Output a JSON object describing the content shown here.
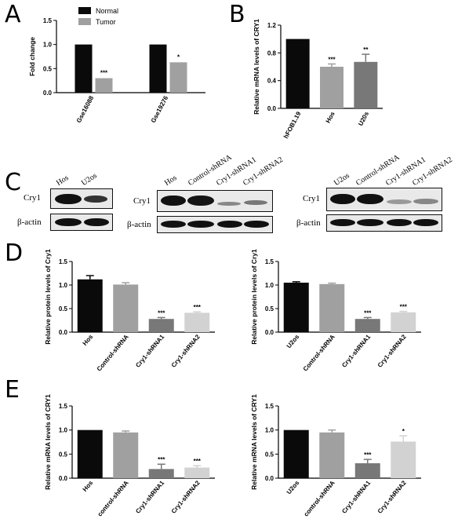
{
  "panels": {
    "A": "A",
    "B": "B",
    "C": "C",
    "D": "D",
    "E": "E"
  },
  "colors": {
    "black": "#0a0a0a",
    "grey": "#9a9a9a",
    "darkgrey": "#707070",
    "lightgrey": "#d0d0d0"
  },
  "blots": {
    "blot1": {
      "lanes": [
        "Hos",
        "U2os"
      ],
      "row_labels": [
        "Cry1",
        "β-actin"
      ]
    },
    "blot2": {
      "lanes": [
        "Hos",
        "Control-shRNA",
        "Cry1-shRNA1",
        "Cry1-shRNA2"
      ],
      "row_labels": [
        "Cry1",
        "β-actin"
      ]
    },
    "blot3": {
      "lanes": [
        "U2os",
        "Control-shRNA",
        "Cry1-shRNA1",
        "Cry1-shRNA2"
      ],
      "row_labels": [
        "Cry1",
        "β-actin"
      ]
    }
  },
  "chart_data": [
    {
      "id": "A",
      "type": "bar",
      "ylabel": "Fold change",
      "ylim": [
        0,
        1.5
      ],
      "yticks": [
        "0.0",
        "0.5",
        "1.0",
        "1.5"
      ],
      "categories": [
        "Gse16088",
        "Gse19276"
      ],
      "legend": [
        "Normal",
        "Tumor"
      ],
      "series": [
        {
          "name": "Normal",
          "values": [
            1.0,
            1.0
          ],
          "color": "#0a0a0a"
        },
        {
          "name": "Tumor",
          "values": [
            0.3,
            0.63
          ],
          "color": "#a0a0a0"
        }
      ],
      "sig": [
        "***",
        "*"
      ]
    },
    {
      "id": "B",
      "type": "bar",
      "ylabel": "Relative mRNA levels of CRY1",
      "ylim": [
        0,
        1.2
      ],
      "yticks": [
        "0.0",
        "0.4",
        "0.8",
        "1.2"
      ],
      "categories": [
        "hFOB1.19",
        "Hos",
        "U20s"
      ],
      "values": [
        1.0,
        0.6,
        0.67
      ],
      "errors": [
        0,
        0.04,
        0.11
      ],
      "colors": [
        "#0a0a0a",
        "#a0a0a0",
        "#787878"
      ],
      "sig": [
        "",
        "***",
        "**"
      ]
    },
    {
      "id": "D1",
      "type": "bar",
      "ylabel": "Relative protein levels of Cry1",
      "ylim": [
        0,
        1.5
      ],
      "yticks": [
        "0.0",
        "0.5",
        "1.0",
        "1.5"
      ],
      "categories": [
        "Hos",
        "Control-shRNA",
        "Cry1-shRNA1",
        "Cry1-shRNA2"
      ],
      "values": [
        1.12,
        1.01,
        0.28,
        0.41
      ],
      "errors": [
        0.08,
        0.04,
        0.03,
        0.02
      ],
      "colors": [
        "#0a0a0a",
        "#a0a0a0",
        "#787878",
        "#d2d2d2"
      ],
      "sig": [
        "",
        "",
        "***",
        "***"
      ]
    },
    {
      "id": "D2",
      "type": "bar",
      "ylabel": "Relative protein levels of Cry1",
      "ylim": [
        0,
        1.5
      ],
      "yticks": [
        "0.0",
        "0.5",
        "1.0",
        "1.5"
      ],
      "categories": [
        "U2os",
        "Control-shRNA",
        "Cry1-shRNA1",
        "Cry1-shRNA2"
      ],
      "values": [
        1.05,
        1.02,
        0.28,
        0.42
      ],
      "errors": [
        0.02,
        0.02,
        0.03,
        0.02
      ],
      "colors": [
        "#0a0a0a",
        "#a0a0a0",
        "#787878",
        "#d2d2d2"
      ],
      "sig": [
        "",
        "",
        "***",
        "***"
      ]
    },
    {
      "id": "E1",
      "type": "bar",
      "ylabel": "Relative mRNA levels of CRY1",
      "ylim": [
        0,
        1.5
      ],
      "yticks": [
        "0.0",
        "0.5",
        "1.0",
        "1.5"
      ],
      "categories": [
        "Hos",
        "control-shRNA",
        "Cry1-shRNA1",
        "Cry1-shRNA2"
      ],
      "values": [
        1.0,
        0.95,
        0.19,
        0.22
      ],
      "errors": [
        0,
        0.03,
        0.1,
        0.04
      ],
      "colors": [
        "#0a0a0a",
        "#a0a0a0",
        "#787878",
        "#d2d2d2"
      ],
      "sig": [
        "",
        "",
        "***",
        "***"
      ]
    },
    {
      "id": "E2",
      "type": "bar",
      "ylabel": "Relative mRNA levels of CRY1",
      "ylim": [
        0,
        1.5
      ],
      "yticks": [
        "0.0",
        "0.5",
        "1.0",
        "1.5"
      ],
      "categories": [
        "U2os",
        "control-shRNA",
        "Cry1-shRNA1",
        "Cry1-shRNA2"
      ],
      "values": [
        1.0,
        0.95,
        0.31,
        0.76
      ],
      "errors": [
        0,
        0.05,
        0.08,
        0.12
      ],
      "colors": [
        "#0a0a0a",
        "#a0a0a0",
        "#787878",
        "#d2d2d2"
      ],
      "sig": [
        "",
        "",
        "***",
        "*"
      ]
    }
  ]
}
